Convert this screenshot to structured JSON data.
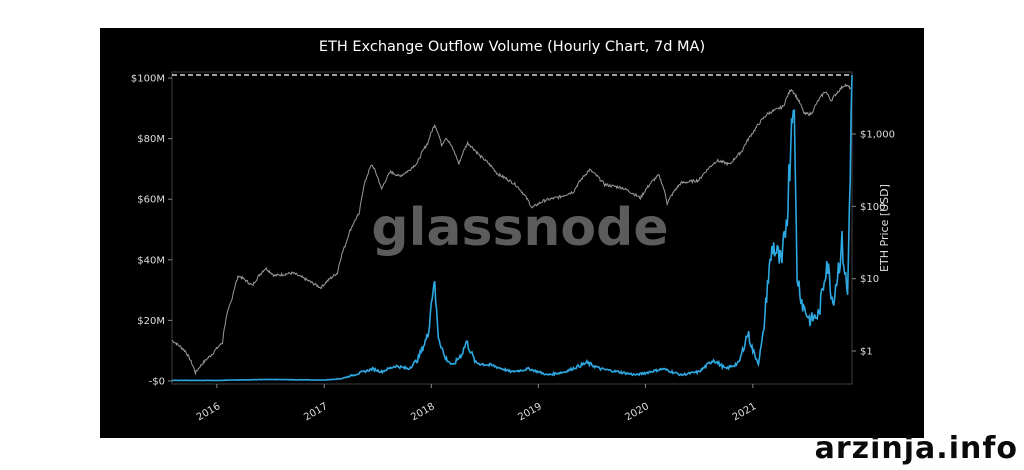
{
  "page": {
    "site_watermark": "arzinja.info"
  },
  "chart_data": {
    "type": "line",
    "title": "ETH Exchange Outflow Volume (Hourly Chart, 7d MA)",
    "watermark": "glassnode",
    "xlabel": "",
    "ylabel_left": "",
    "ylabel_right": "ETH Price [USD]",
    "x_ticks": [
      "2016",
      "2017",
      "2018",
      "2019",
      "2020",
      "2021"
    ],
    "y_left_ticks": [
      "-$0",
      "$20M",
      "$40M",
      "$60M",
      "$80M",
      "$100M"
    ],
    "y_left_tick_values": [
      0,
      20,
      40,
      60,
      80,
      100
    ],
    "y_left_range_musd": [
      -1,
      102
    ],
    "y_right_ticks": [
      "$1",
      "$10",
      "$100",
      "$1,000"
    ],
    "y_right_tick_values": [
      1,
      10,
      100,
      1000
    ],
    "y_right_range_usd": [
      0.35,
      7200
    ],
    "y_right_scale": "log",
    "x_range": [
      "2015-08-01",
      "2021-12-05"
    ],
    "reference_line": {
      "value_musd": 101,
      "style": "dashed",
      "color": "#ffffff"
    },
    "grid": false,
    "legend": "none",
    "series": [
      {
        "role": "exchange-outflow-volume",
        "axis": "left",
        "unit": "USD millions",
        "color": "#2ea8e0",
        "points": [
          [
            "2015-08-01",
            0.2
          ],
          [
            "2016-01-01",
            0.2
          ],
          [
            "2016-06-15",
            0.5
          ],
          [
            "2017-01-01",
            0.3
          ],
          [
            "2017-03-01",
            0.8
          ],
          [
            "2017-05-15",
            3
          ],
          [
            "2017-06-15",
            4
          ],
          [
            "2017-07-15",
            3
          ],
          [
            "2017-09-01",
            5
          ],
          [
            "2017-10-15",
            4
          ],
          [
            "2017-11-15",
            7
          ],
          [
            "2017-12-20",
            15
          ],
          [
            "2018-01-10",
            34
          ],
          [
            "2018-01-25",
            15
          ],
          [
            "2018-02-15",
            8
          ],
          [
            "2018-03-15",
            5
          ],
          [
            "2018-04-15",
            9
          ],
          [
            "2018-05-01",
            13
          ],
          [
            "2018-06-01",
            6
          ],
          [
            "2018-08-01",
            5
          ],
          [
            "2018-10-01",
            3
          ],
          [
            "2018-12-01",
            4
          ],
          [
            "2019-02-01",
            2
          ],
          [
            "2019-04-01",
            3
          ],
          [
            "2019-06-15",
            6
          ],
          [
            "2019-08-01",
            4
          ],
          [
            "2019-10-01",
            3
          ],
          [
            "2019-12-01",
            2
          ],
          [
            "2020-03-01",
            4
          ],
          [
            "2020-05-01",
            2
          ],
          [
            "2020-07-01",
            3
          ],
          [
            "2020-08-20",
            7
          ],
          [
            "2020-10-01",
            4
          ],
          [
            "2020-11-15",
            6
          ],
          [
            "2020-12-15",
            16
          ],
          [
            "2021-01-01",
            10
          ],
          [
            "2021-01-20",
            6
          ],
          [
            "2021-02-05",
            15
          ],
          [
            "2021-02-20",
            32
          ],
          [
            "2021-03-10",
            45
          ],
          [
            "2021-04-10",
            38
          ],
          [
            "2021-05-01",
            60
          ],
          [
            "2021-05-19",
            100
          ],
          [
            "2021-06-01",
            35
          ],
          [
            "2021-06-20",
            25
          ],
          [
            "2021-07-15",
            20
          ],
          [
            "2021-08-15",
            22
          ],
          [
            "2021-09-10",
            40
          ],
          [
            "2021-10-01",
            26
          ],
          [
            "2021-11-01",
            45
          ],
          [
            "2021-11-20",
            28
          ],
          [
            "2021-12-05",
            101
          ]
        ]
      },
      {
        "role": "eth-price",
        "axis": "right",
        "unit": "USD",
        "color": "#9a9a9a",
        "points": [
          [
            "2015-08-01",
            1.4
          ],
          [
            "2015-09-15",
            1.0
          ],
          [
            "2015-10-20",
            0.5
          ],
          [
            "2015-12-15",
            0.9
          ],
          [
            "2016-01-20",
            1.3
          ],
          [
            "2016-02-20",
            5
          ],
          [
            "2016-03-15",
            11
          ],
          [
            "2016-05-01",
            8
          ],
          [
            "2016-06-15",
            14
          ],
          [
            "2016-07-15",
            11
          ],
          [
            "2016-09-15",
            12
          ],
          [
            "2016-11-15",
            9
          ],
          [
            "2016-12-20",
            7.5
          ],
          [
            "2017-02-15",
            12
          ],
          [
            "2017-03-15",
            30
          ],
          [
            "2017-05-01",
            80
          ],
          [
            "2017-06-12",
            380
          ],
          [
            "2017-07-15",
            170
          ],
          [
            "2017-08-15",
            300
          ],
          [
            "2017-09-15",
            260
          ],
          [
            "2017-10-15",
            310
          ],
          [
            "2017-11-15",
            400
          ],
          [
            "2017-12-20",
            750
          ],
          [
            "2018-01-13",
            1350
          ],
          [
            "2018-02-05",
            700
          ],
          [
            "2018-02-20",
            900
          ],
          [
            "2018-04-05",
            380
          ],
          [
            "2018-05-05",
            750
          ],
          [
            "2018-06-15",
            500
          ],
          [
            "2018-08-15",
            280
          ],
          [
            "2018-10-15",
            200
          ],
          [
            "2018-12-10",
            95
          ],
          [
            "2019-01-20",
            120
          ],
          [
            "2019-03-15",
            135
          ],
          [
            "2019-05-01",
            160
          ],
          [
            "2019-06-25",
            320
          ],
          [
            "2019-08-15",
            200
          ],
          [
            "2019-10-15",
            180
          ],
          [
            "2019-12-15",
            130
          ],
          [
            "2020-02-15",
            270
          ],
          [
            "2020-03-15",
            110
          ],
          [
            "2020-05-01",
            210
          ],
          [
            "2020-07-01",
            230
          ],
          [
            "2020-09-01",
            430
          ],
          [
            "2020-10-15",
            380
          ],
          [
            "2020-11-25",
            580
          ],
          [
            "2021-01-05",
            1100
          ],
          [
            "2021-02-20",
            1900
          ],
          [
            "2021-04-15",
            2400
          ],
          [
            "2021-05-12",
            4200
          ],
          [
            "2021-06-25",
            1900
          ],
          [
            "2021-07-20",
            1900
          ],
          [
            "2021-09-05",
            3900
          ],
          [
            "2021-09-25",
            2900
          ],
          [
            "2021-11-10",
            4800
          ],
          [
            "2021-12-05",
            4200
          ]
        ]
      }
    ]
  }
}
